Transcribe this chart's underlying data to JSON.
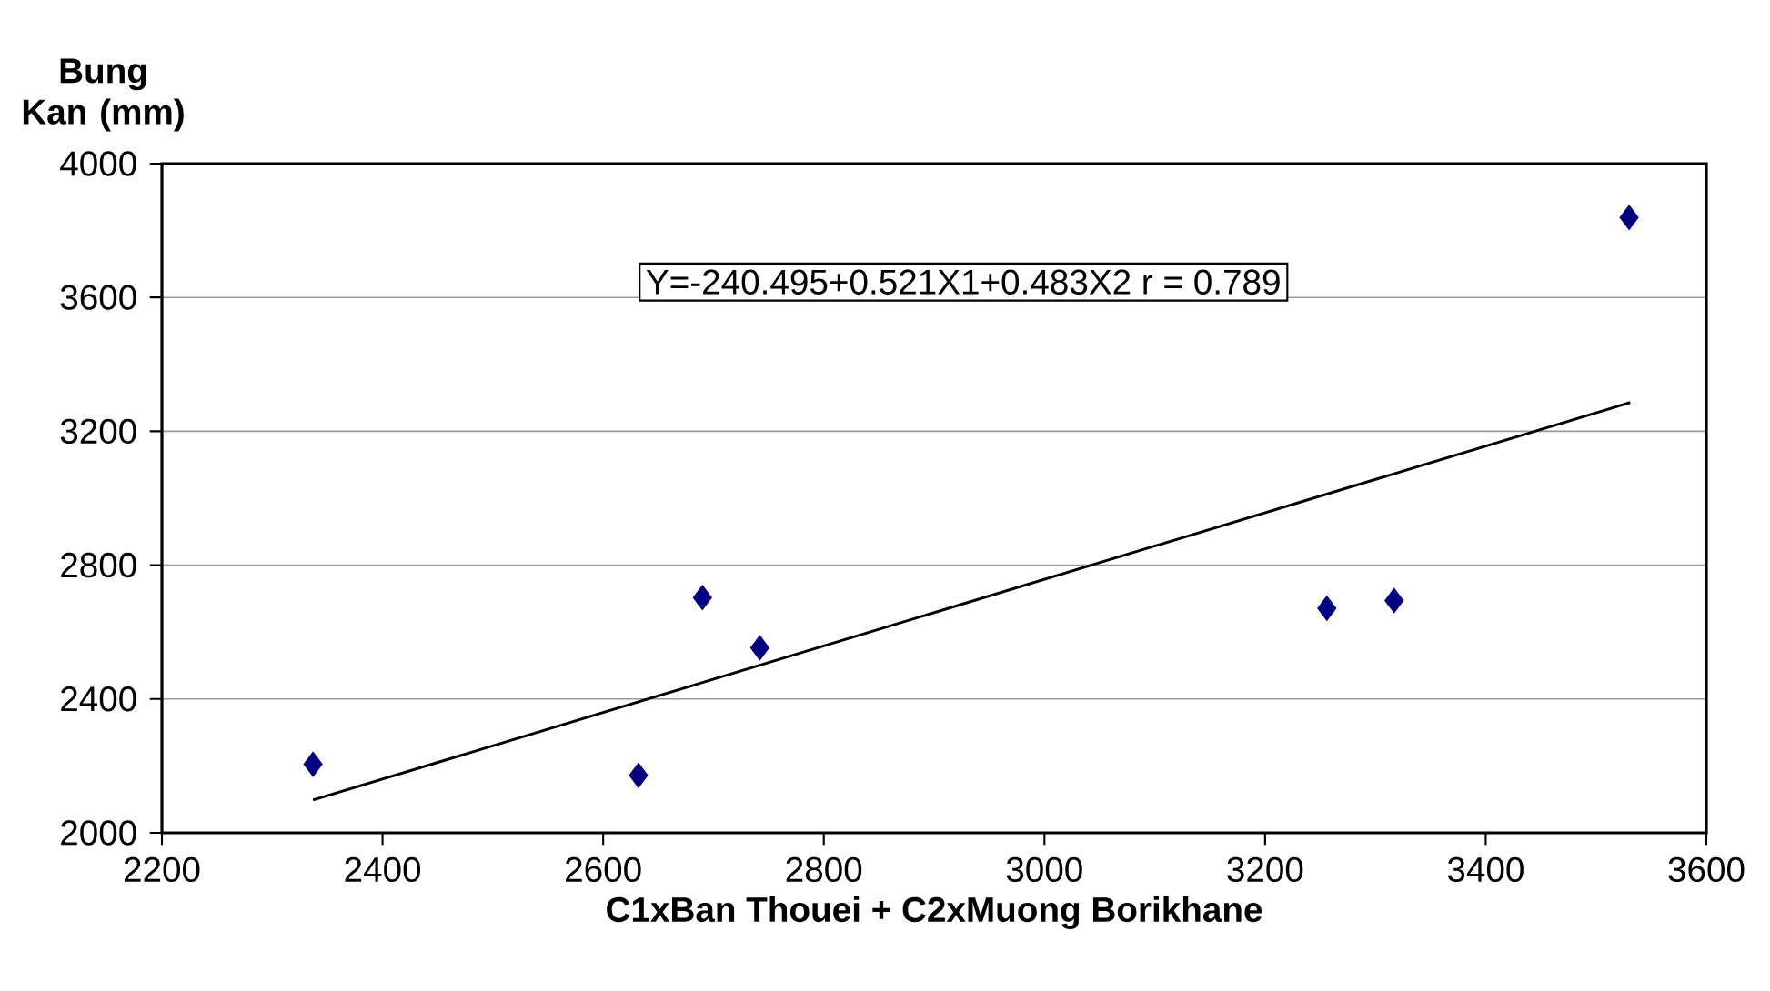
{
  "chart_data": {
    "type": "scatter",
    "xlabel": "C1xBan Thouei + C2xMuong Borikhane",
    "ylabel": "Bung Kan (mm)",
    "annotations": [
      "Y=-240.495+0.521X1+0.483X2      r = 0.789"
    ],
    "series": [
      {
        "marker": "diamond",
        "color": "#000080",
        "x": [
          2337,
          2632,
          2690,
          2742,
          3256,
          3317,
          3530
        ],
        "values": [
          2205,
          2172,
          2703,
          2553,
          2671,
          2694,
          3839
        ]
      },
      {
        "type": "line",
        "marker": "none",
        "color": "#000000",
        "x": [
          2337,
          3531
        ],
        "values": [
          2098,
          3286
        ]
      }
    ],
    "grid": "y",
    "xlim": [
      2200,
      3600
    ],
    "xticks": [
      2200,
      2400,
      2600,
      2800,
      3000,
      3200,
      3400,
      3600
    ],
    "ylim": [
      2000,
      4000
    ],
    "yticks": [
      2000,
      2400,
      2800,
      3200,
      3600,
      4000
    ]
  }
}
